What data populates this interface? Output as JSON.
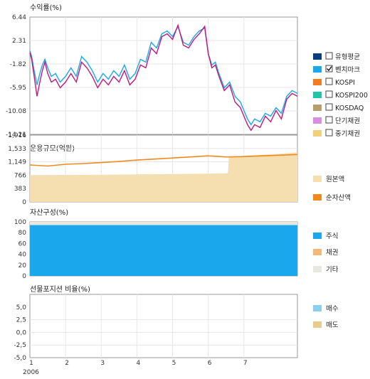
{
  "chart_data": [
    {
      "type": "line",
      "title": "수익률(%)",
      "ylim": [
        -14.21,
        6.44
      ],
      "yticks": [
        "6.44",
        "2.31",
        "-1.82",
        "-5.95",
        "-10.08",
        "-14.21"
      ],
      "legend": [
        {
          "label": "유형평균",
          "color": "#0b3f7c",
          "checked": false
        },
        {
          "label": "벤치마크",
          "color": "#1aa7ec",
          "checked": true
        },
        {
          "label": "KOSPI",
          "color": "#f47b20",
          "checked": false
        },
        {
          "label": "KOSPI200",
          "color": "#20c4a8",
          "checked": false
        },
        {
          "label": "KOSDAQ",
          "color": "#b79f6d",
          "checked": false
        },
        {
          "label": "단기채권",
          "color": "#d98fe0",
          "checked": false
        },
        {
          "label": "중기채권",
          "color": "#f2cf7a",
          "checked": false
        }
      ],
      "series": [
        {
          "name": "벤치마크",
          "color": "#1aa7ec",
          "x": [
            0.0,
            0.05,
            0.12,
            0.2,
            0.28,
            0.35,
            0.42,
            0.5,
            0.6,
            0.72,
            0.85,
            1.0,
            1.15,
            1.3,
            1.45,
            1.6,
            1.75,
            1.9,
            2.05,
            2.2,
            2.35,
            2.5,
            2.65,
            2.8,
            2.95,
            3.1,
            3.25,
            3.4,
            3.55,
            3.7,
            3.85,
            4.0,
            4.15,
            4.3,
            4.45,
            4.6,
            4.75,
            4.9,
            5.0,
            5.1,
            5.2,
            5.3,
            5.45,
            5.6,
            5.75,
            5.9,
            6.0,
            6.1,
            6.2,
            6.3,
            6.45,
            6.6,
            6.75,
            6.9,
            7.05,
            7.2,
            7.35,
            7.5
          ],
          "y": [
            0.5,
            -0.5,
            -3.0,
            -5.5,
            -3.5,
            -2.0,
            -1.0,
            -2.5,
            -4.0,
            -3.5,
            -5.0,
            -4.0,
            -2.5,
            -4.0,
            -0.5,
            -1.5,
            -3.0,
            -5.0,
            -3.5,
            -4.5,
            -3.0,
            -4.0,
            -2.0,
            -4.5,
            -3.5,
            -1.0,
            -1.5,
            2.0,
            1.0,
            3.5,
            4.0,
            3.0,
            4.8,
            2.0,
            1.5,
            3.0,
            4.0,
            4.5,
            0.0,
            -2.0,
            -1.5,
            -3.5,
            -6.0,
            -5.0,
            -7.5,
            -8.5,
            -10.0,
            -11.5,
            -12.5,
            -11.5,
            -12.0,
            -10.5,
            -11.0,
            -9.5,
            -10.5,
            -7.5,
            -6.5,
            -7.0
          ]
        },
        {
          "name": "유형평균",
          "color": "#c0187b",
          "x": [
            0.0,
            0.05,
            0.12,
            0.2,
            0.28,
            0.35,
            0.42,
            0.5,
            0.6,
            0.72,
            0.85,
            1.0,
            1.15,
            1.3,
            1.45,
            1.6,
            1.75,
            1.9,
            2.05,
            2.2,
            2.35,
            2.5,
            2.65,
            2.8,
            2.95,
            3.1,
            3.25,
            3.4,
            3.55,
            3.7,
            3.85,
            4.0,
            4.15,
            4.3,
            4.45,
            4.6,
            4.75,
            4.9,
            5.0,
            5.1,
            5.2,
            5.3,
            5.45,
            5.6,
            5.75,
            5.9,
            6.0,
            6.1,
            6.2,
            6.3,
            6.45,
            6.6,
            6.75,
            6.9,
            7.05,
            7.2,
            7.35,
            7.5
          ],
          "y": [
            0.2,
            -1.0,
            -4.0,
            -7.5,
            -5.0,
            -3.0,
            -1.5,
            -3.5,
            -5.0,
            -4.5,
            -6.0,
            -5.0,
            -3.5,
            -5.0,
            -1.5,
            -2.5,
            -4.0,
            -6.0,
            -4.5,
            -5.5,
            -4.0,
            -5.0,
            -3.0,
            -5.5,
            -4.5,
            -2.0,
            -2.5,
            1.0,
            0.0,
            3.0,
            3.5,
            2.5,
            5.0,
            1.5,
            1.0,
            2.5,
            3.5,
            4.8,
            0.0,
            -2.5,
            -2.0,
            -4.0,
            -6.5,
            -5.5,
            -8.5,
            -9.5,
            -11.0,
            -12.5,
            -13.5,
            -12.5,
            -13.0,
            -11.0,
            -12.0,
            -10.0,
            -11.5,
            -8.0,
            -7.0,
            -7.5
          ]
        }
      ]
    },
    {
      "type": "area",
      "title": "운용규모(억원)",
      "ylim": [
        0,
        1916
      ],
      "yticks": [
        "1,916",
        "1,533",
        "1,149",
        "766",
        "383",
        "0"
      ],
      "legend": [
        {
          "label": "원본액",
          "color": "#f5deb0"
        },
        {
          "label": "순자산액",
          "color": "#f08a1c"
        }
      ],
      "series": [
        {
          "name": "원본액",
          "type": "area",
          "x": [
            0.0,
            1.0,
            2.0,
            3.0,
            4.0,
            5.0,
            5.55,
            5.58,
            6.0,
            7.0,
            7.5
          ],
          "y": [
            760,
            770,
            780,
            790,
            800,
            810,
            820,
            1280,
            1320,
            1380,
            1420
          ]
        },
        {
          "name": "순자산액",
          "type": "line",
          "x": [
            0.0,
            0.5,
            1.0,
            1.5,
            2.0,
            2.5,
            3.0,
            3.5,
            4.0,
            4.5,
            5.0,
            5.5,
            6.0,
            6.5,
            7.0,
            7.5
          ],
          "y": [
            1060,
            1030,
            1080,
            1100,
            1130,
            1160,
            1200,
            1230,
            1260,
            1290,
            1320,
            1290,
            1300,
            1320,
            1340,
            1360
          ]
        }
      ]
    },
    {
      "type": "area",
      "title": "자산구성(%)",
      "ylim": [
        0,
        100
      ],
      "yticks": [
        "100",
        "80",
        "60",
        "40",
        "20",
        "0"
      ],
      "legend": [
        {
          "label": "주식",
          "color": "#1aa7ec"
        },
        {
          "label": "채권",
          "color": "#f5b77a"
        },
        {
          "label": "기타",
          "color": "#e8e8e0"
        }
      ],
      "series": [
        {
          "name": "주식",
          "value": 94
        },
        {
          "name": "채권",
          "value": 0
        },
        {
          "name": "기타",
          "value": 6
        }
      ]
    },
    {
      "type": "bar",
      "title": "선물포지션 비율(%)",
      "ylim": [
        -5.0,
        7.5
      ],
      "yticks": [
        "5,0",
        "2,5",
        "0,0",
        "-2,5",
        "-5,0"
      ],
      "legend": [
        {
          "label": "매수",
          "color": "#8ccff0"
        },
        {
          "label": "매도",
          "color": "#e8cb8e"
        }
      ],
      "series": []
    }
  ],
  "xaxis": {
    "ticks": [
      {
        "label": "1",
        "x": 0
      },
      {
        "label": "2",
        "x": 1
      },
      {
        "label": "3",
        "x": 2
      },
      {
        "label": "4",
        "x": 3
      },
      {
        "label": "5",
        "x": 4
      },
      {
        "label": "6",
        "x": 5
      },
      {
        "label": "7",
        "x": 6
      }
    ],
    "year_label": "2006",
    "xmax": 7.5
  }
}
